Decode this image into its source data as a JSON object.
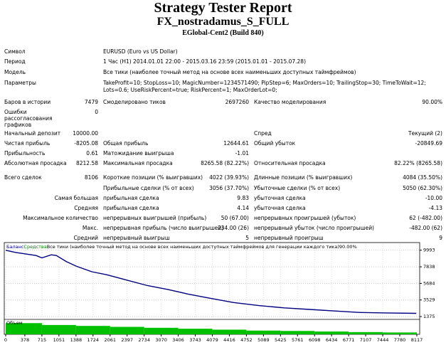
{
  "header": {
    "title": "Strategy Tester Report",
    "subtitle": "FX_nostradamus_S_FULL",
    "build": "EGlobal-Cent2 (Build 840)"
  },
  "info": [
    [
      "Символ",
      "EURUSD (Euro vs US Dollar)"
    ],
    [
      "Период",
      "1 Час (H1) 2014.01.01 22:00 - 2015.03.16 23:59 (2015.01.01 - 2015.07.28)"
    ],
    [
      "Модель",
      "Все тики (наиболее точный метод на основе всех наименьших доступных таймфреймов)"
    ],
    [
      "Параметры",
      "TakeProfit=10; StopLoss=10; MagicNumber=1234571490; PipStep=6; MaxOrders=10; TrailingStop=30; TimeToWait=12; Lots=0.6; UseRiskPercent=true; RiskPercent=1; MaxOrderLot=0;"
    ]
  ],
  "stats": [
    [
      "Баров в истории",
      "7479",
      "Смоделировано тиков",
      "2697260",
      "Качество моделирования",
      "90.00%"
    ],
    [
      "Ошибки рассогласования графиков",
      "0",
      null,
      null,
      null,
      null
    ],
    [
      "Начальный депозит",
      "10000.00",
      null,
      null,
      "Спред",
      "Текущий (2)"
    ],
    [
      "Чистая прибыль",
      "-8205.08",
      "Общая прибыль",
      "12644.61",
      "Общий убыток",
      "-20849.69"
    ],
    [
      "Прибыльность",
      "0.61",
      "Матожидание выигрыша",
      "-1.01",
      null,
      null
    ],
    [
      "Абсолютная просадка",
      "8212.58",
      "Максимальная просадка",
      "8265.58 (82.22%)",
      "Относительная просадка",
      "82.22% (8265.58)"
    ],
    [
      "Всего сделок",
      "8106",
      "Короткие позиции (% выигравших)",
      "4022 (39.93%)",
      "Длинные позиции (% выигравших)",
      "4084 (35.50%)"
    ],
    [
      null,
      null,
      "Прибыльные сделки (% от всех)",
      "3056 (37.70%)",
      "Убыточные сделки (% от всех)",
      "5050 (62.30%)"
    ],
    [
      "Самая большая",
      null,
      "прибыльная сделка",
      "9.83",
      "убыточная сделка",
      "-10.00"
    ],
    [
      "Средняя",
      null,
      "прибыльная сделка",
      "4.14",
      "убыточная сделка",
      "-4.13"
    ],
    [
      "Максимальное количество",
      null,
      "непрерывных выигрышей (прибыль)",
      "50 (67.00)",
      "непрерывных проигрышей (убыток)",
      "62 (-482.00)"
    ],
    [
      "Макс.",
      null,
      "непрерывная прибыль (число выигрышей)",
      "234.00 (26)",
      "непрерывный убыток (число проигрышей)",
      "-482.00 (62)"
    ],
    [
      "Средний",
      null,
      "непрерывный выигрыш",
      "5",
      "непрерывный проигрыш",
      "9"
    ]
  ],
  "chart": {
    "series": [
      {
        "name": "Баланс",
        "color": "#000080"
      },
      {
        "name": "Средства",
        "color": "#008000"
      }
    ],
    "model": "Все тики (наиболее точный метод на основе всех наименьших доступных таймфреймов для генерации каждого тика)",
    "quality": "90.00%",
    "xlim": [
      0,
      8117
    ],
    "xticks": [
      0,
      378,
      715,
      1051,
      1388,
      1724,
      2061,
      2397,
      2734,
      3070,
      3406,
      3743,
      4079,
      4416,
      4752,
      5089,
      5425,
      5761,
      6098,
      6434,
      6771,
      7107,
      7444,
      7780,
      8117
    ],
    "ylim": [
      1100,
      10800
    ],
    "yticks": [
      9993,
      7838,
      5684,
      3529,
      1375
    ],
    "balance": {
      "x": [
        0,
        200,
        400,
        600,
        715,
        900,
        1000,
        1200,
        1400,
        1700,
        2000,
        2400,
        2800,
        3200,
        3600,
        4000,
        4500,
        5000,
        5500,
        6000,
        6500,
        7000,
        7500,
        8106
      ],
      "values": [
        9990,
        9700,
        9500,
        9300,
        9000,
        9400,
        9300,
        8500,
        7900,
        7200,
        6800,
        6100,
        5400,
        4900,
        4300,
        3800,
        3200,
        2800,
        2500,
        2300,
        2100,
        1900,
        1850,
        1795
      ]
    },
    "volume": {
      "label": "Объем",
      "color": "#00c000",
      "vlim": [
        0,
        0.8
      ],
      "bins": [
        0,
        715,
        1388,
        2061,
        2734,
        3406,
        4079,
        4752,
        5425,
        6098,
        6771,
        7444,
        8117
      ],
      "values": [
        0.6,
        0.5,
        0.45,
        0.4,
        0.35,
        0.3,
        0.25,
        0.2,
        0.18,
        0.15,
        0.12,
        0.1
      ]
    }
  }
}
